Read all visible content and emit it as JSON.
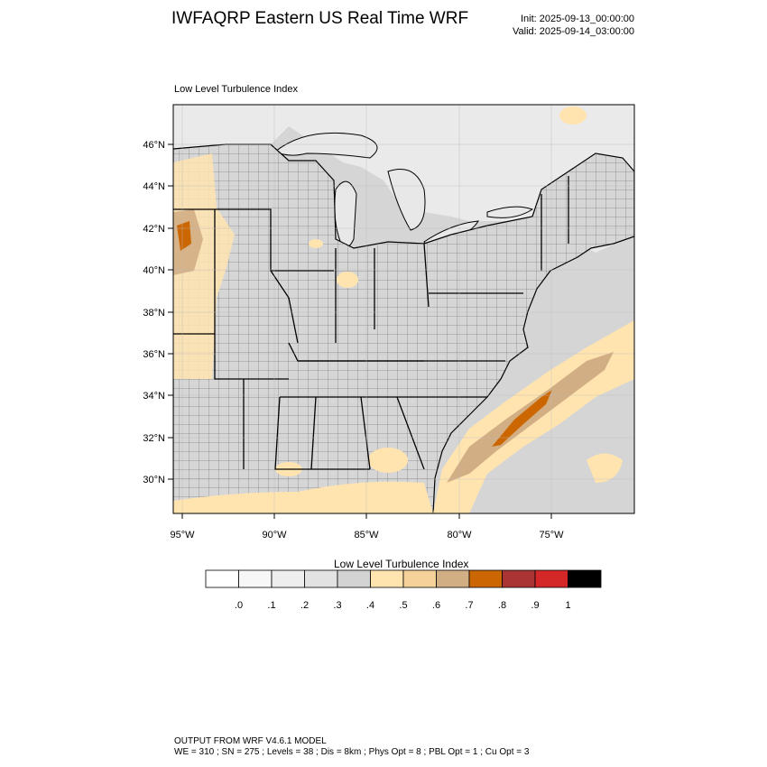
{
  "header": {
    "title": "IWFAQRP Eastern US Real Time WRF",
    "init": "Init: 2025-09-13_00:00:00",
    "valid": "Valid: 2025-09-14_03:00:00"
  },
  "plot": {
    "field_label": "Low Level Turbulence Index",
    "lat_ticks": [
      "46°N",
      "44°N",
      "42°N",
      "40°N",
      "38°N",
      "36°N",
      "34°N",
      "32°N",
      "30°N"
    ],
    "lon_ticks": [
      "95°W",
      "90°W",
      "85°W",
      "80°W",
      "75°W"
    ]
  },
  "colorbar": {
    "title": "Low Level Turbulence Index",
    "labels": [
      ".0",
      ".1",
      ".2",
      ".3",
      ".4",
      ".5",
      ".6",
      ".7",
      ".8",
      ".9",
      "1"
    ],
    "colors": [
      "#ffffff",
      "#f7f7f7",
      "#eeeeee",
      "#e2e2e2",
      "#d3d3d3",
      "#ffe4b0",
      "#f5d29a",
      "#d2ae84",
      "#cc6600",
      "#aa3333",
      "#d42828",
      "#000000"
    ]
  },
  "footer": {
    "line1": "OUTPUT FROM WRF V4.6.1 MODEL",
    "line2": "WE = 310 ; SN = 275 ; Levels = 38 ; Dis = 8km ; Phys Opt = 8 ; PBL Opt = 1 ; Cu Opt = 3"
  }
}
